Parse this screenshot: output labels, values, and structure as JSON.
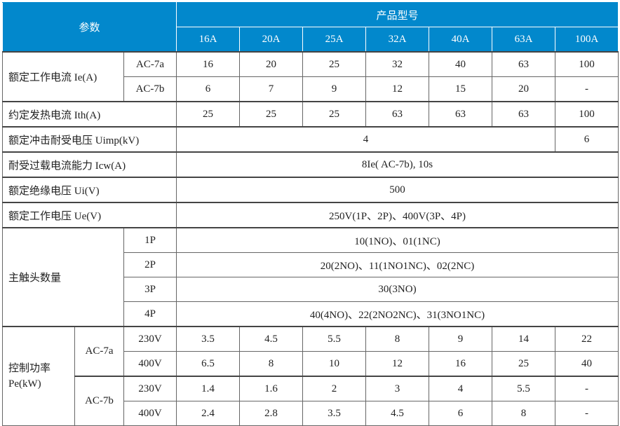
{
  "header": {
    "param": "参数",
    "product_model": "产品型号",
    "models": [
      "16A",
      "20A",
      "25A",
      "32A",
      "40A",
      "63A",
      "100A"
    ]
  },
  "rated_current": {
    "label": "额定工作电流 Ie(A)",
    "rows": [
      {
        "sub": "AC-7a",
        "values": [
          "16",
          "20",
          "25",
          "32",
          "40",
          "63",
          "100"
        ]
      },
      {
        "sub": "AC-7b",
        "values": [
          "6",
          "7",
          "9",
          "12",
          "15",
          "20",
          "-"
        ]
      }
    ]
  },
  "thermal_current": {
    "label": "约定发热电流 Ith(A)",
    "values": [
      "25",
      "25",
      "25",
      "63",
      "63",
      "63",
      "100"
    ]
  },
  "impulse_voltage": {
    "label": "额定冲击耐受电压 Uimp(kV)",
    "value_main": "4",
    "value_100a": "6"
  },
  "overload": {
    "label": "耐受过载电流能力 Icw(A)",
    "value": "8Ie( AC-7b), 10s"
  },
  "insulation_voltage": {
    "label": "额定绝缘电压 Ui(V)",
    "value": "500"
  },
  "operating_voltage": {
    "label": "额定工作电压 Ue(V)",
    "value": "250V(1P、2P)、400V(3P、4P)"
  },
  "main_contacts": {
    "label": "主触头数量",
    "rows": [
      {
        "pole": "1P",
        "value": "10(1NO)、01(1NC)"
      },
      {
        "pole": "2P",
        "value": "20(2NO)、11(1NO1NC)、02(2NC)"
      },
      {
        "pole": "3P",
        "value": "30(3NO)"
      },
      {
        "pole": "4P",
        "value": "40(4NO)、22(2NO2NC)、31(3NO1NC)"
      }
    ]
  },
  "control_power": {
    "label_line1": "控制功率",
    "label_line2": "Pe(kW)",
    "groups": [
      {
        "category": "AC-7a",
        "rows": [
          {
            "voltage": "230V",
            "values": [
              "3.5",
              "4.5",
              "5.5",
              "8",
              "9",
              "14",
              "22"
            ]
          },
          {
            "voltage": "400V",
            "values": [
              "6.5",
              "8",
              "10",
              "12",
              "16",
              "25",
              "40"
            ]
          }
        ]
      },
      {
        "category": "AC-7b",
        "rows": [
          {
            "voltage": "230V",
            "values": [
              "1.4",
              "1.6",
              "2",
              "3",
              "4",
              "5.5",
              "-"
            ]
          },
          {
            "voltage": "400V",
            "values": [
              "2.4",
              "2.8",
              "3.5",
              "4.5",
              "6",
              "8",
              "-"
            ]
          }
        ]
      }
    ]
  },
  "colors": {
    "header_bg": "#0288cc",
    "header_text": "#ffffff"
  }
}
